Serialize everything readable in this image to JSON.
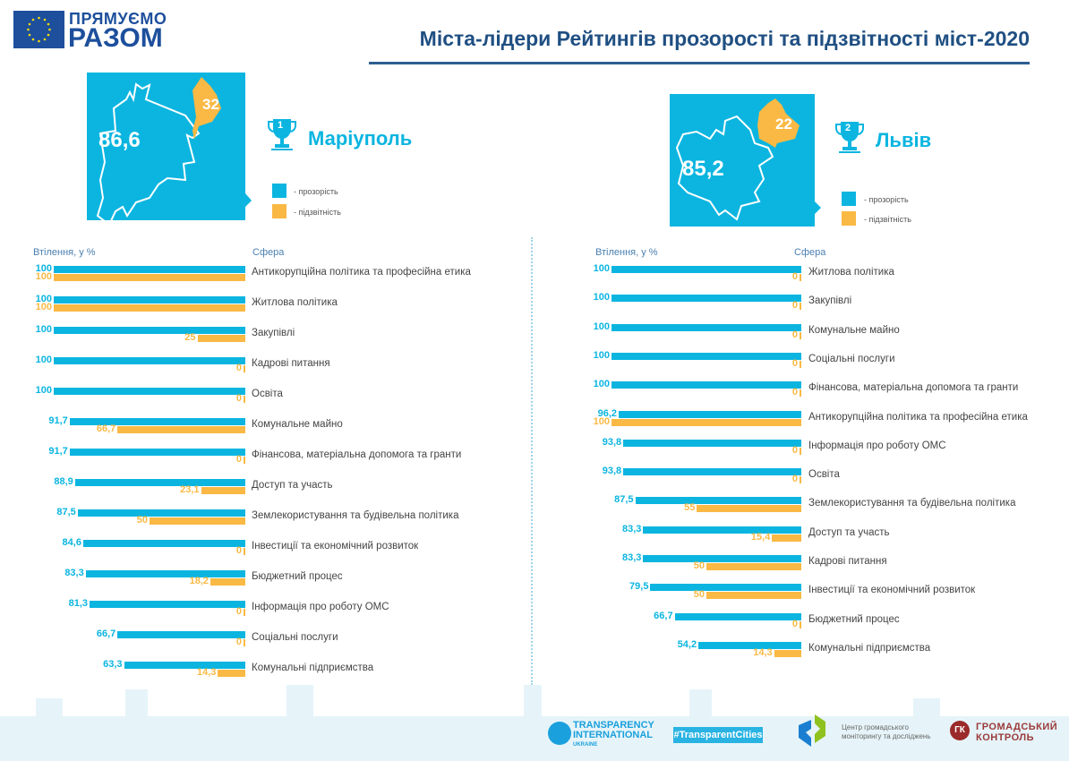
{
  "header": {
    "logo_line1": "ПРЯМУЄМО",
    "logo_line2": "РАЗОМ",
    "title": "Міста-лідери Рейтингів прозорості та підзвітності міст-2020"
  },
  "colors": {
    "transparency": "#0bb5e0",
    "accountability": "#f9b944",
    "title": "#1f4f82"
  },
  "legend": {
    "transparency": "- прозорість",
    "accountability": "- підзвітність"
  },
  "cities": [
    {
      "rank": "1",
      "name": "Маріуполь",
      "transparency_score": "86,6",
      "accountability_score": "32"
    },
    {
      "rank": "2",
      "name": "Львів",
      "transparency_score": "85,2",
      "accountability_score": "22"
    }
  ],
  "chart_data": [
    {
      "type": "bar",
      "title": "Маріуполь",
      "xlabel": "Втілення, у %",
      "ylabel": "Сфера",
      "xlim": [
        0,
        100
      ],
      "categories": [
        "Антикорупційна політика та професійна етика",
        "Житлова політика",
        "Закупівлі",
        "Кадрові питання",
        "Освіта",
        "Комунальне майно",
        "Фінансова, матеріальна допомога та гранти",
        "Доступ та участь",
        "Землекористування та будівельна політика",
        "Інвестиції та економічний розвиток",
        "Бюджетний процес",
        "Інформація про роботу ОМС",
        "Соціальні послуги",
        "Комунальні підприємства"
      ],
      "series": [
        {
          "name": "прозорість",
          "values": [
            100,
            100,
            100,
            100,
            100,
            91.7,
            91.7,
            88.9,
            87.5,
            84.6,
            83.3,
            81.3,
            66.7,
            63.3
          ],
          "labels": [
            "100",
            "100",
            "100",
            "100",
            "100",
            "91,7",
            "91,7",
            "88,9",
            "87,5",
            "84,6",
            "83,3",
            "81,3",
            "66,7",
            "63,3"
          ]
        },
        {
          "name": "підзвітність",
          "values": [
            100,
            100,
            25,
            0,
            0,
            66.7,
            0,
            23.1,
            50,
            0,
            18.2,
            0,
            0,
            14.3
          ],
          "labels": [
            "100",
            "100",
            "25",
            "0",
            "0",
            "66,7",
            "0",
            "23,1",
            "50",
            "0",
            "18,2",
            "0",
            "0",
            "14,3"
          ]
        }
      ]
    },
    {
      "type": "bar",
      "title": "Львів",
      "xlabel": "Втілення, у %",
      "ylabel": "Сфера",
      "xlim": [
        0,
        100
      ],
      "categories": [
        "Житлова політика",
        "Закупівлі",
        "Комунальне майно",
        "Соціальні послуги",
        "Фінансова, матеріальна допомога та гранти",
        "Антикорупційна політика та професійна етика",
        "Інформація про роботу ОМС",
        "Освіта",
        "Землекористування та будівельна політика",
        "Доступ та участь",
        "Кадрові питання",
        "Інвестиції та економічний розвиток",
        "Бюджетний процес",
        "Комунальні підприємства"
      ],
      "series": [
        {
          "name": "прозорість",
          "values": [
            100,
            100,
            100,
            100,
            100,
            96.2,
            93.8,
            93.8,
            87.5,
            83.3,
            83.3,
            79.5,
            66.7,
            54.2
          ],
          "labels": [
            "100",
            "100",
            "100",
            "100",
            "100",
            "96,2",
            "93,8",
            "93,8",
            "87,5",
            "83,3",
            "83,3",
            "79,5",
            "66,7",
            "54,2"
          ]
        },
        {
          "name": "підзвітність",
          "values": [
            0,
            0,
            0,
            0,
            0,
            100,
            0,
            0,
            55,
            15.4,
            50,
            50,
            0,
            14.3
          ],
          "labels": [
            "0",
            "0",
            "0",
            "0",
            "0",
            "100",
            "0",
            "0",
            "55",
            "15,4",
            "50",
            "50",
            "0",
            "14,3"
          ]
        }
      ]
    }
  ],
  "footer": {
    "ti_line1": "TRANSPARENCY",
    "ti_line2": "INTERNATIONAL",
    "ti_line3": "UKRAINE",
    "hashtag": "#TransparentCities",
    "cgm_line1": "Центр громадського",
    "cgm_line2": "моніторингу та досліджень",
    "gk_badge": "ГК",
    "gk_line1": "ГРОМАДСЬКИЙ",
    "gk_line2": "КОНТРОЛЬ"
  }
}
